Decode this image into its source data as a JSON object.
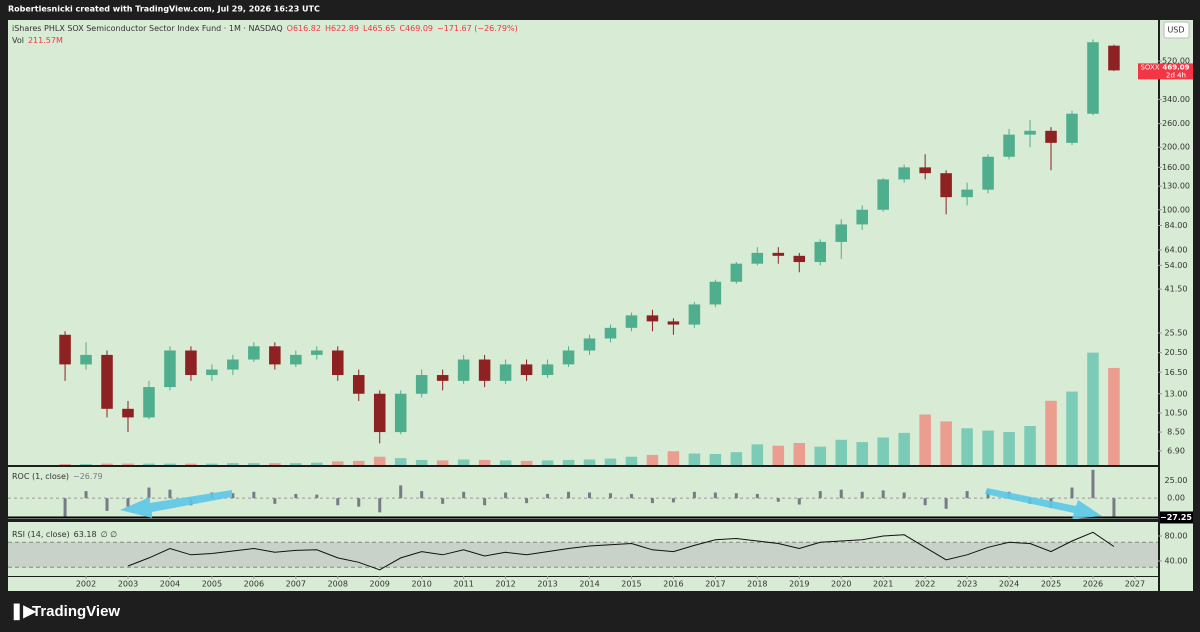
{
  "header": {
    "credit": "Robertlesnicki created with TradingView.com, Jul 29, 2026 16:23 UTC",
    "symbol": "iShares PHLX SOX Semiconductor Sector Index Fund · 1M · NASDAQ",
    "ohlc": [
      "O616.82",
      "H622.89",
      "L465.65",
      "C469.09",
      "−171.67 (−26.79%)"
    ]
  },
  "footer": {
    "brand": "TradingView"
  },
  "chart_data": [
    {
      "type": "candlestick",
      "currency": "USD",
      "log_scale": true,
      "x": [
        2001.5,
        2002,
        2002.5,
        2003,
        2003.5,
        2004,
        2004.5,
        2005,
        2005.5,
        2006,
        2006.5,
        2007,
        2007.5,
        2008,
        2008.5,
        2009,
        2009.5,
        2010,
        2010.5,
        2011,
        2011.5,
        2012,
        2012.5,
        2013,
        2013.5,
        2014,
        2014.5,
        2015,
        2015.5,
        2016,
        2016.5,
        2017,
        2017.5,
        2018,
        2018.5,
        2019,
        2019.5,
        2020,
        2020.5,
        2021,
        2021.5,
        2022,
        2022.5,
        2023,
        2023.5,
        2024,
        2024.5,
        2025,
        2025.5,
        2026,
        2026.5
      ],
      "open": [
        25,
        18,
        20,
        11,
        10,
        14,
        21,
        16,
        17,
        19,
        22,
        18,
        20,
        21,
        16,
        13,
        8.5,
        13,
        16,
        15,
        19,
        15,
        18,
        16,
        18,
        21,
        24,
        27,
        31,
        29,
        28,
        35,
        45,
        55,
        62,
        60,
        56,
        70,
        85,
        100,
        140,
        160,
        150,
        115,
        125,
        180,
        230,
        240,
        210,
        290,
        616.82
      ],
      "high": [
        26,
        23,
        21,
        12,
        15,
        22,
        22,
        18,
        20,
        23,
        23,
        21,
        22,
        22,
        17,
        13.5,
        13.5,
        17,
        17,
        20,
        20,
        19,
        19,
        19,
        22,
        25,
        28,
        32,
        33,
        30,
        36,
        46,
        56,
        66,
        66,
        62,
        72,
        90,
        105,
        142,
        165,
        185,
        155,
        135,
        185,
        245,
        270,
        250,
        300,
        660,
        622.89
      ],
      "low": [
        15,
        17,
        10,
        8.5,
        9.8,
        13.5,
        15,
        15,
        16,
        18.5,
        17,
        17.5,
        19,
        15,
        12,
        7.5,
        8.3,
        12.5,
        13.5,
        14.5,
        14,
        14.5,
        15,
        15.5,
        17.5,
        20,
        23,
        26,
        26,
        25,
        27,
        34,
        44,
        54,
        55,
        50,
        54,
        58,
        80,
        98,
        135,
        140,
        95,
        105,
        120,
        175,
        200,
        155,
        205,
        285,
        465.65
      ],
      "close": [
        18,
        20,
        11,
        10,
        14,
        21,
        16,
        17,
        19,
        22,
        18,
        20,
        21,
        16,
        13,
        8.5,
        13,
        16,
        15,
        19,
        15,
        18,
        16,
        18,
        21,
        24,
        27,
        31,
        29,
        28,
        35,
        45,
        55,
        62,
        60,
        56,
        70,
        85,
        100,
        140,
        160,
        150,
        115,
        125,
        180,
        230,
        240,
        210,
        290,
        640.76,
        469.09
      ],
      "up_color": "#4fae8e",
      "down_color": "#8e2222",
      "xlim": [
        2000.14,
        2027.55
      ],
      "ylim": [
        5.9,
        820
      ],
      "yticks": [
        {
          "value": 6.9,
          "label": "6.90"
        },
        {
          "value": 8.5,
          "label": "8.50"
        },
        {
          "value": 10.5,
          "label": "10.50"
        },
        {
          "value": 13,
          "label": "13.00"
        },
        {
          "value": 16.5,
          "label": "16.50"
        },
        {
          "value": 20.5,
          "label": "20.50"
        },
        {
          "value": 25.5,
          "label": "25.50"
        },
        {
          "value": 41.5,
          "label": "41.50"
        },
        {
          "value": 54,
          "label": "54.00"
        },
        {
          "value": 64,
          "label": "64.00"
        },
        {
          "value": 84,
          "label": "84.00"
        },
        {
          "value": 100,
          "label": "100.00"
        },
        {
          "value": 130,
          "label": "130.00"
        },
        {
          "value": 160,
          "label": "160.00"
        },
        {
          "value": 200,
          "label": "200.00"
        },
        {
          "value": 260,
          "label": "260.00"
        },
        {
          "value": 340,
          "label": "340.00"
        },
        {
          "value": 520,
          "label": "520.00"
        }
      ],
      "last_price": {
        "symbol": "SOXX",
        "price": "469.09",
        "countdown": "2d 4h",
        "color": "#f23645"
      },
      "volume": {
        "name": "Vol",
        "value_label": "211.57M",
        "ylim": [
          0,
          970
        ],
        "up_color": "#6cc5b0",
        "down_color": "#ef8f82",
        "values": [
          2,
          2,
          3,
          3,
          3,
          3,
          3,
          3,
          4,
          4,
          4,
          4,
          5,
          8,
          9,
          18,
          15,
          11,
          10,
          12,
          11,
          10,
          9,
          10,
          11,
          12,
          14,
          18,
          22,
          30,
          25,
          24,
          28,
          45,
          42,
          48,
          40,
          55,
          50,
          60,
          70,
          110,
          95,
          80,
          75,
          72,
          85,
          140,
          160,
          245,
          211.57
        ]
      }
    },
    {
      "type": "bar",
      "title": "ROC (1, close)",
      "value_label": "−26.79",
      "color": "#787b86",
      "x": [
        2001.5,
        2002,
        2002.5,
        2003,
        2003.5,
        2004,
        2004.5,
        2005,
        2005.5,
        2006,
        2006.5,
        2007,
        2007.5,
        2008,
        2008.5,
        2009,
        2009.5,
        2010,
        2010.5,
        2011,
        2011.5,
        2012,
        2012.5,
        2013,
        2013.5,
        2014,
        2014.5,
        2015,
        2015.5,
        2016,
        2016.5,
        2017,
        2017.5,
        2018,
        2018.5,
        2019,
        2019.5,
        2020,
        2020.5,
        2021,
        2021.5,
        2022,
        2022.5,
        2023,
        2023.5,
        2024,
        2024.5,
        2025,
        2025.5,
        2026,
        2026.5
      ],
      "values": [
        -26,
        10,
        -18,
        -12,
        15,
        12,
        -10,
        8,
        7,
        9,
        -8,
        6,
        5,
        -10,
        -12,
        -20,
        18,
        10,
        -8,
        9,
        -10,
        8,
        -7,
        6,
        9,
        8,
        7,
        6,
        -7,
        -6,
        9,
        8,
        7,
        6,
        -5,
        -9,
        10,
        12,
        9,
        11,
        8,
        -10,
        -15,
        10,
        12,
        9,
        -8,
        -14,
        15,
        40,
        -26.79
      ],
      "xlim": [
        2000.14,
        2027.55
      ],
      "ylim": [
        -28,
        44
      ],
      "yticks": [
        {
          "value": 25,
          "label": "25.00"
        },
        {
          "value": 0,
          "label": "0.00"
        }
      ],
      "level": {
        "value": -27.25,
        "label": "−27.25"
      }
    },
    {
      "type": "line",
      "title": "RSI (14, close)",
      "value_label": "63.18",
      "extra": "∅ ∅",
      "color": "#111111",
      "x": [
        2001.5,
        2002,
        2002.5,
        2003,
        2003.5,
        2004,
        2004.5,
        2005,
        2005.5,
        2006,
        2006.5,
        2007,
        2007.5,
        2008,
        2008.5,
        2009,
        2009.5,
        2010,
        2010.5,
        2011,
        2011.5,
        2012,
        2012.5,
        2013,
        2013.5,
        2014,
        2014.5,
        2015,
        2015.5,
        2016,
        2016.5,
        2017,
        2017.5,
        2018,
        2018.5,
        2019,
        2019.5,
        2020,
        2020.5,
        2021,
        2021.5,
        2022,
        2022.5,
        2023,
        2023.5,
        2024,
        2024.5,
        2025,
        2025.5,
        2026,
        2026.5
      ],
      "values": [
        null,
        null,
        null,
        32,
        45,
        60,
        50,
        52,
        56,
        60,
        54,
        57,
        58,
        45,
        38,
        26,
        45,
        55,
        50,
        58,
        48,
        54,
        50,
        55,
        60,
        64,
        66,
        68,
        58,
        55,
        65,
        74,
        76,
        72,
        68,
        60,
        70,
        72,
        74,
        80,
        82,
        62,
        42,
        50,
        62,
        70,
        68,
        55,
        72,
        86,
        63.18
      ],
      "xlim": [
        2000.14,
        2027.55
      ],
      "ylim": [
        17.6,
        97.6
      ],
      "yticks": [
        {
          "value": 80,
          "label": "80.00"
        },
        {
          "value": 40,
          "label": "40.00"
        }
      ],
      "band": [
        30,
        70
      ],
      "xticks": [
        2002,
        2003,
        2004,
        2005,
        2006,
        2007,
        2008,
        2009,
        2010,
        2011,
        2012,
        2013,
        2014,
        2015,
        2016,
        2017,
        2018,
        2019,
        2020,
        2021,
        2022,
        2023,
        2024,
        2025,
        2026,
        2027
      ]
    }
  ]
}
